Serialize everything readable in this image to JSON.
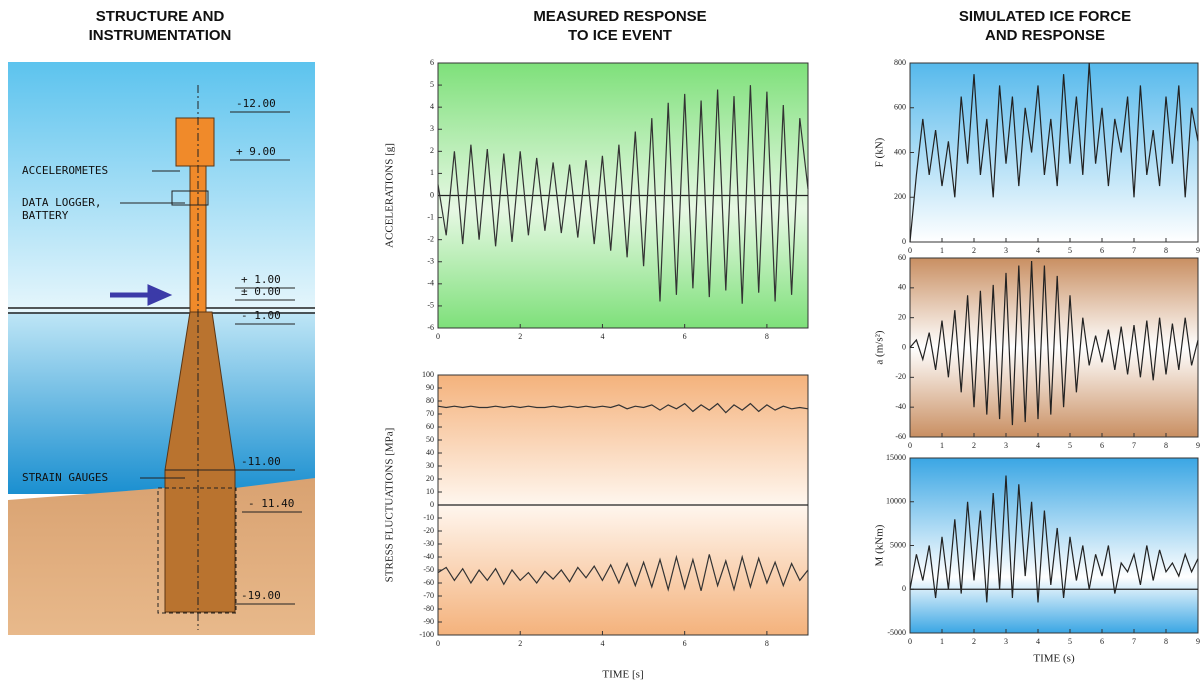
{
  "headings": [
    [
      "STRUCTURE AND",
      "INSTRUMENTATION"
    ],
    [
      "MEASURED RESPONSE",
      "TO ICE EVENT"
    ],
    [
      "SIMULATED ICE FORCE",
      "AND RESPONSE"
    ]
  ],
  "structure": {
    "labels": [
      "ACCELEROMETES",
      "DATA LOGGER,",
      "BATTERY",
      "STRAIN GAUGES"
    ],
    "levels": [
      "-12.00",
      "+ 9.00",
      "+ 1.00",
      "± 0.00",
      "- 1.00",
      "-11.00",
      "- 11.40",
      "-19.00"
    ]
  },
  "chart_data": [
    {
      "type": "line",
      "ylabel": "ACCELERATIONS [g]",
      "xlim": [
        0,
        9
      ],
      "ylim": [
        -6,
        6
      ],
      "xticks": [
        0,
        2,
        4,
        6,
        8
      ],
      "yticks": [
        -6,
        -5,
        -4,
        -3,
        -2,
        -1,
        0,
        1,
        2,
        3,
        4,
        5,
        6
      ],
      "reference_line": 0,
      "x": [
        0,
        0.2,
        0.4,
        0.6,
        0.8,
        1,
        1.2,
        1.4,
        1.6,
        1.8,
        2,
        2.2,
        2.4,
        2.6,
        2.8,
        3,
        3.2,
        3.4,
        3.6,
        3.8,
        4,
        4.2,
        4.4,
        4.6,
        4.8,
        5,
        5.2,
        5.4,
        5.6,
        5.8,
        6,
        6.2,
        6.4,
        6.6,
        6.8,
        7,
        7.2,
        7.4,
        7.6,
        7.8,
        8,
        8.2,
        8.4,
        8.6,
        8.8,
        9
      ],
      "series": [
        {
          "color": "#333333",
          "values": [
            0.5,
            -1.8,
            2.0,
            -2.2,
            2.3,
            -2.0,
            2.1,
            -2.3,
            1.9,
            -2.1,
            2.0,
            -1.8,
            1.7,
            -1.6,
            1.5,
            -1.7,
            1.4,
            -1.9,
            1.6,
            -2.2,
            1.8,
            -2.5,
            2.3,
            -2.8,
            2.9,
            -3.2,
            3.5,
            -4.8,
            4.2,
            -4.5,
            4.6,
            -4.2,
            4.3,
            -4.6,
            4.8,
            -4.3,
            4.5,
            -4.9,
            5.0,
            -4.4,
            4.7,
            -4.8,
            4.1,
            -4.5,
            3.5,
            0.3
          ]
        }
      ]
    },
    {
      "type": "line",
      "ylabel": "STRESS FLUCTUATIONS [MPa]",
      "xlabel": "TIME [s]",
      "xlim": [
        0,
        9
      ],
      "ylim": [
        -100,
        100
      ],
      "xticks": [
        0,
        2,
        4,
        6,
        8
      ],
      "yticks": [
        -100,
        -90,
        -80,
        -70,
        -60,
        -50,
        -40,
        -30,
        -20,
        -10,
        0,
        10,
        20,
        30,
        40,
        50,
        60,
        70,
        80,
        90,
        100
      ],
      "reference_line": 0,
      "x": [
        0,
        0.2,
        0.4,
        0.6,
        0.8,
        1,
        1.2,
        1.4,
        1.6,
        1.8,
        2,
        2.2,
        2.4,
        2.6,
        2.8,
        3,
        3.2,
        3.4,
        3.6,
        3.8,
        4,
        4.2,
        4.4,
        4.6,
        4.8,
        5,
        5.2,
        5.4,
        5.6,
        5.8,
        6,
        6.2,
        6.4,
        6.6,
        6.8,
        7,
        7.2,
        7.4,
        7.6,
        7.8,
        8,
        8.2,
        8.4,
        8.6,
        8.8,
        9
      ],
      "series": [
        {
          "color": "#333333",
          "values": [
            76,
            75,
            76,
            75,
            76,
            75,
            75,
            76,
            75,
            76,
            75,
            76,
            75,
            75,
            76,
            75,
            76,
            75,
            76,
            75,
            76,
            75,
            77,
            74,
            76,
            75,
            77,
            73,
            77,
            74,
            78,
            72,
            77,
            73,
            78,
            71,
            77,
            73,
            78,
            72,
            77,
            73,
            76,
            74,
            75,
            74
          ]
        },
        {
          "color": "#333333",
          "values": [
            -52,
            -48,
            -58,
            -49,
            -60,
            -50,
            -58,
            -49,
            -61,
            -50,
            -58,
            -52,
            -60,
            -51,
            -57,
            -50,
            -59,
            -48,
            -56,
            -47,
            -58,
            -46,
            -60,
            -45,
            -62,
            -44,
            -63,
            -42,
            -65,
            -40,
            -64,
            -42,
            -66,
            -38,
            -62,
            -43,
            -65,
            -40,
            -63,
            -41,
            -60,
            -44,
            -62,
            -45,
            -58,
            -50
          ]
        }
      ]
    },
    {
      "type": "line",
      "ylabel": "F (kN)",
      "xlim": [
        0,
        9
      ],
      "ylim": [
        0,
        800
      ],
      "xticks": [
        0,
        1,
        2,
        3,
        4,
        5,
        6,
        7,
        8,
        9
      ],
      "yticks": [
        0,
        200,
        400,
        600,
        800
      ],
      "x": [
        0,
        0.2,
        0.4,
        0.6,
        0.8,
        1,
        1.2,
        1.4,
        1.6,
        1.8,
        2,
        2.2,
        2.4,
        2.6,
        2.8,
        3,
        3.2,
        3.4,
        3.6,
        3.8,
        4,
        4.2,
        4.4,
        4.6,
        4.8,
        5,
        5.2,
        5.4,
        5.6,
        5.8,
        6,
        6.2,
        6.4,
        6.6,
        6.8,
        7,
        7.2,
        7.4,
        7.6,
        7.8,
        8,
        8.2,
        8.4,
        8.6,
        8.8,
        9
      ],
      "series": [
        {
          "color": "#222222",
          "values": [
            0,
            300,
            550,
            300,
            500,
            250,
            450,
            200,
            650,
            350,
            750,
            300,
            550,
            200,
            700,
            350,
            650,
            250,
            600,
            400,
            700,
            300,
            550,
            250,
            750,
            350,
            650,
            300,
            800,
            350,
            600,
            250,
            550,
            400,
            650,
            200,
            700,
            300,
            500,
            250,
            650,
            350,
            700,
            200,
            600,
            450
          ]
        }
      ]
    },
    {
      "type": "line",
      "ylabel": "a (m/s²)",
      "xlim": [
        0,
        9
      ],
      "ylim": [
        -60,
        60
      ],
      "xticks": [
        0,
        1,
        2,
        3,
        4,
        5,
        6,
        7,
        8,
        9
      ],
      "yticks": [
        -60,
        -40,
        -20,
        0,
        20,
        40,
        60
      ],
      "x": [
        0,
        0.2,
        0.4,
        0.6,
        0.8,
        1,
        1.2,
        1.4,
        1.6,
        1.8,
        2,
        2.2,
        2.4,
        2.6,
        2.8,
        3,
        3.2,
        3.4,
        3.6,
        3.8,
        4,
        4.2,
        4.4,
        4.6,
        4.8,
        5,
        5.2,
        5.4,
        5.6,
        5.8,
        6,
        6.2,
        6.4,
        6.6,
        6.8,
        7,
        7.2,
        7.4,
        7.6,
        7.8,
        8,
        8.2,
        8.4,
        8.6,
        8.8,
        9
      ],
      "series": [
        {
          "color": "#222222",
          "values": [
            0,
            5,
            -8,
            10,
            -15,
            18,
            -20,
            25,
            -30,
            35,
            -40,
            38,
            -45,
            42,
            -48,
            50,
            -52,
            55,
            -50,
            58,
            -48,
            55,
            -45,
            48,
            -40,
            35,
            -30,
            20,
            -12,
            8,
            -10,
            12,
            -15,
            14,
            -18,
            15,
            -20,
            18,
            -22,
            20,
            -18,
            16,
            -15,
            20,
            -12,
            5
          ]
        }
      ]
    },
    {
      "type": "line",
      "ylabel": "M (kNm)",
      "xlabel": "TIME (s)",
      "xlim": [
        0,
        9
      ],
      "ylim": [
        -5000,
        15000
      ],
      "xticks": [
        0,
        1,
        2,
        3,
        4,
        5,
        6,
        7,
        8,
        9
      ],
      "yticks": [
        -5000,
        0,
        5000,
        10000,
        15000
      ],
      "reference_line": 0,
      "x": [
        0,
        0.2,
        0.4,
        0.6,
        0.8,
        1,
        1.2,
        1.4,
        1.6,
        1.8,
        2,
        2.2,
        2.4,
        2.6,
        2.8,
        3,
        3.2,
        3.4,
        3.6,
        3.8,
        4,
        4.2,
        4.4,
        4.6,
        4.8,
        5,
        5.2,
        5.4,
        5.6,
        5.8,
        6,
        6.2,
        6.4,
        6.6,
        6.8,
        7,
        7.2,
        7.4,
        7.6,
        7.8,
        8,
        8.2,
        8.4,
        8.6,
        8.8,
        9
      ],
      "series": [
        {
          "color": "#222222",
          "values": [
            0,
            4000,
            1000,
            5000,
            -1000,
            6000,
            0,
            8000,
            -500,
            10000,
            1000,
            9000,
            -1500,
            11000,
            0,
            13000,
            -1000,
            12000,
            1500,
            10000,
            -1500,
            9000,
            500,
            7000,
            -1000,
            6000,
            1000,
            5000,
            0,
            4000,
            1500,
            5000,
            -500,
            3000,
            2000,
            4000,
            500,
            5000,
            1000,
            4500,
            2000,
            3000,
            1500,
            4000,
            2000,
            3500
          ]
        }
      ]
    }
  ]
}
